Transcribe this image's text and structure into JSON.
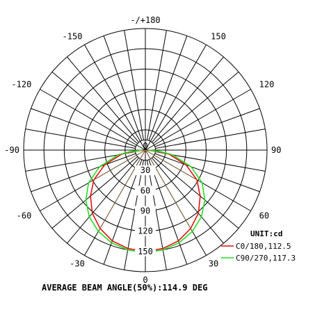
{
  "chart_data": {
    "type": "polar",
    "angle_ticks": [
      {
        "angle": 180,
        "label": "-/+180"
      },
      {
        "angle": 150,
        "label": "150"
      },
      {
        "angle": 120,
        "label": "120"
      },
      {
        "angle": 90,
        "label": "90"
      },
      {
        "angle": 60,
        "label": "60"
      },
      {
        "angle": 30,
        "label": "30"
      },
      {
        "angle": 0,
        "label": "0"
      },
      {
        "angle": -30,
        "label": "-30"
      },
      {
        "angle": -60,
        "label": "-60"
      },
      {
        "angle": -90,
        "label": "-90"
      },
      {
        "angle": -120,
        "label": "-120"
      },
      {
        "angle": -150,
        "label": "-150"
      }
    ],
    "radial_ticks": [
      0,
      30,
      60,
      90,
      120,
      150
    ],
    "radial_max": 180,
    "unit_label": "UNIT:cd",
    "series": [
      {
        "name": "C0/180,112.5",
        "color": "#e01010",
        "points": [
          [
            0,
            150
          ],
          [
            10,
            148
          ],
          [
            20,
            143
          ],
          [
            30,
            134
          ],
          [
            40,
            122
          ],
          [
            50,
            106
          ],
          [
            60,
            88
          ],
          [
            70,
            64
          ],
          [
            80,
            36
          ],
          [
            85,
            18
          ],
          [
            90,
            4
          ]
        ]
      },
      {
        "name": "C90/270,117.3",
        "color": "#22dd22",
        "points": [
          [
            0,
            152
          ],
          [
            10,
            150
          ],
          [
            20,
            146
          ],
          [
            30,
            139
          ],
          [
            40,
            129
          ],
          [
            50,
            115
          ],
          [
            60,
            97
          ],
          [
            70,
            72
          ],
          [
            80,
            41
          ],
          [
            85,
            21
          ],
          [
            90,
            5
          ]
        ]
      }
    ],
    "caption": "AVERAGE BEAM ANGLE(50%):114.9 DEG"
  }
}
